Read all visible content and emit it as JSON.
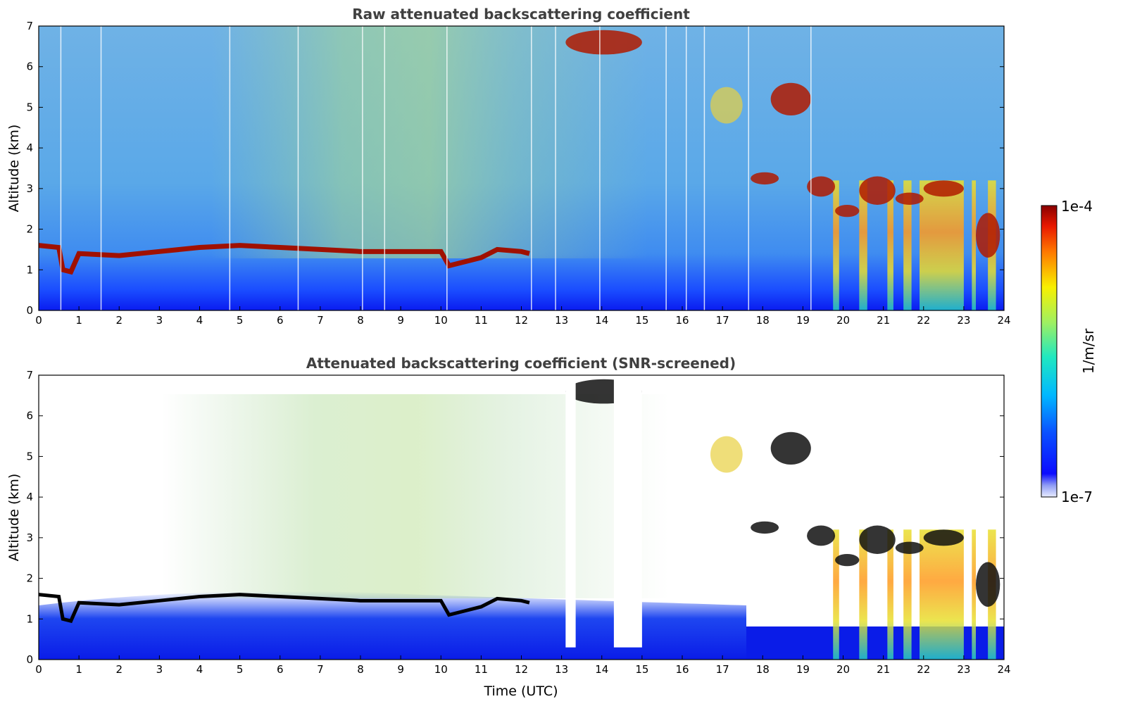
{
  "chart_data": [
    {
      "type": "heatmap",
      "title": "Raw attenuated backscattering coefficient",
      "xlabel": "",
      "ylabel": "Altitude (km)",
      "xlim": [
        0,
        24
      ],
      "ylim": [
        0,
        7
      ],
      "x_ticks": [
        "0",
        "1",
        "2",
        "3",
        "4",
        "5",
        "6",
        "7",
        "8",
        "9",
        "10",
        "11",
        "12",
        "13",
        "14",
        "15",
        "16",
        "17",
        "18",
        "19",
        "20",
        "21",
        "22",
        "23",
        "24"
      ],
      "y_ticks": [
        "0",
        "1",
        "2",
        "3",
        "4",
        "5",
        "6",
        "7"
      ],
      "features": {
        "boundary_layer_top_km": [
          [
            0,
            1.6
          ],
          [
            0.5,
            1.55
          ],
          [
            0.6,
            1.0
          ],
          [
            0.8,
            0.95
          ],
          [
            1,
            1.4
          ],
          [
            2,
            1.35
          ],
          [
            3,
            1.45
          ],
          [
            4,
            1.55
          ],
          [
            5,
            1.6
          ],
          [
            6,
            1.55
          ],
          [
            7,
            1.5
          ],
          [
            8,
            1.45
          ],
          [
            9,
            1.45
          ],
          [
            10,
            1.45
          ],
          [
            10.2,
            1.1
          ],
          [
            10.6,
            1.2
          ],
          [
            11,
            1.3
          ],
          [
            11.4,
            1.5
          ],
          [
            12,
            1.45
          ],
          [
            12.2,
            1.4
          ]
        ],
        "cloud_patches": [
          {
            "x": [
              13.1,
              15.0
            ],
            "y": [
              6.3,
              6.9
            ],
            "level": "high"
          },
          {
            "x": [
              16.7,
              17.5
            ],
            "y": [
              4.6,
              5.5
            ],
            "level": "medium"
          },
          {
            "x": [
              17.7,
              18.4
            ],
            "y": [
              3.1,
              3.4
            ],
            "level": "high"
          },
          {
            "x": [
              18.2,
              19.2
            ],
            "y": [
              4.8,
              5.6
            ],
            "level": "high"
          },
          {
            "x": [
              19.1,
              19.8
            ],
            "y": [
              2.8,
              3.3
            ],
            "level": "high"
          },
          {
            "x": [
              19.8,
              20.4
            ],
            "y": [
              2.3,
              2.6
            ],
            "level": "high"
          },
          {
            "x": [
              20.4,
              21.3
            ],
            "y": [
              2.6,
              3.3
            ],
            "level": "high"
          },
          {
            "x": [
              21.3,
              22.0
            ],
            "y": [
              2.6,
              2.9
            ],
            "level": "high"
          },
          {
            "x": [
              22.0,
              23.0
            ],
            "y": [
              2.8,
              3.2
            ],
            "level": "high"
          },
          {
            "x": [
              23.3,
              23.9
            ],
            "y": [
              1.3,
              2.4
            ],
            "level": "high"
          }
        ],
        "precipitation_columns": [
          [
            19.75,
            19.9
          ],
          [
            20.4,
            20.6
          ],
          [
            21.1,
            21.25
          ],
          [
            21.5,
            21.7
          ],
          [
            21.9,
            23.0
          ],
          [
            23.2,
            23.3
          ],
          [
            23.6,
            23.8
          ]
        ]
      }
    },
    {
      "type": "heatmap",
      "title": "Attenuated backscattering coefficient (SNR-screened)",
      "xlabel": "Time (UTC)",
      "ylabel": "Altitude (km)",
      "xlim": [
        0,
        24
      ],
      "ylim": [
        0,
        7
      ],
      "x_ticks": [
        "0",
        "1",
        "2",
        "3",
        "4",
        "5",
        "6",
        "7",
        "8",
        "9",
        "10",
        "11",
        "12",
        "13",
        "14",
        "15",
        "16",
        "17",
        "18",
        "19",
        "20",
        "21",
        "22",
        "23",
        "24"
      ],
      "y_ticks": [
        "0",
        "1",
        "2",
        "3",
        "4",
        "5",
        "6",
        "7"
      ],
      "screened_gaps": [
        [
          13.1,
          13.35
        ],
        [
          14.3,
          15.0
        ]
      ]
    }
  ],
  "colorbar": {
    "label": "1/m/sr",
    "max_label": "1e-4",
    "min_label": "1e-7",
    "colormap": "jet"
  },
  "colors": {
    "title": "#404040",
    "layer": "#a01000",
    "layer_screened": "#000000"
  }
}
